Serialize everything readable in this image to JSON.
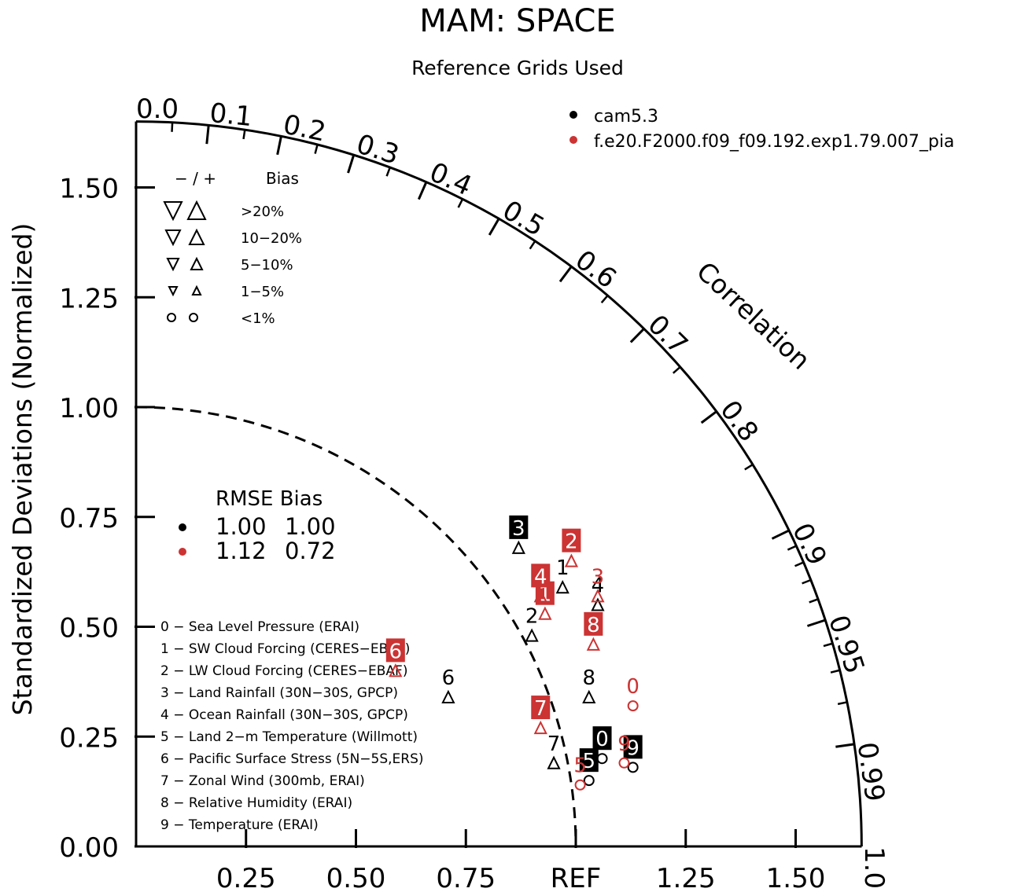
{
  "title": "MAM: SPACE",
  "subtitle": "Reference Grids Used",
  "chart_data": {
    "type": "scatter",
    "diagram": "taylor",
    "title": "MAM: SPACE",
    "subtitle": "Reference Grids Used",
    "ylabel": "Standardized Deviations (Normalized)",
    "arc_label": "Correlation",
    "ref_label": "REF",
    "y_ticks": [
      "0.00",
      "0.25",
      "0.50",
      "0.75",
      "1.00",
      "1.25",
      "1.50"
    ],
    "x_ticks": [
      "0.25",
      "0.50",
      "0.75",
      "REF",
      "1.25",
      "1.50"
    ],
    "corr_ticks": [
      "0.0",
      "0.1",
      "0.2",
      "0.3",
      "0.4",
      "0.5",
      "0.6",
      "0.7",
      "0.8",
      "0.9",
      "0.95",
      "0.99",
      "1.0"
    ],
    "legend": [
      {
        "name": "cam5.3",
        "color": "#000000"
      },
      {
        "name": "f.e20.F2000.f09_f09.192.exp1.79.007_pia",
        "color": "#cc3333"
      }
    ],
    "bias_legend": {
      "header_signs": "− / +",
      "header_bias": "Bias",
      "rows": [
        ">20%",
        "10−20%",
        "5−10%",
        "1−5%",
        "<1%"
      ]
    },
    "rmse_table": {
      "header": "RMSE Bias",
      "rows": [
        {
          "rmse": "1.00",
          "bias": "1.00",
          "color": "#000000"
        },
        {
          "rmse": "1.12",
          "bias": "0.72",
          "color": "#cc3333"
        }
      ]
    },
    "variables": [
      "0 − Sea Level Pressure (ERAI)",
      "1 − SW Cloud Forcing (CERES−EBAF)",
      "2 − LW Cloud Forcing (CERES−EBAF)",
      "3 − Land Rainfall (30N−30S, GPCP)",
      "4 − Ocean Rainfall (30N−30S, GPCP)",
      "5 − Land 2−m Temperature (Willmott)",
      "6 − Pacific Surface Stress (5N−5S,ERS)",
      "7 − Zonal Wind (300mb, ERAI)",
      "8 − Relative Humidity (ERAI)",
      "9 − Temperature (ERAI)"
    ],
    "series": [
      {
        "name": "cam5.3",
        "color": "#000000",
        "points": [
          {
            "id": "0",
            "x": 1.06,
            "y": 0.2,
            "marker": "circle",
            "boxed": true
          },
          {
            "id": "1",
            "x": 0.97,
            "y": 0.59,
            "marker": "tri-up",
            "boxed": false
          },
          {
            "id": "2",
            "x": 0.9,
            "y": 0.48,
            "marker": "tri-up",
            "boxed": false
          },
          {
            "id": "3",
            "x": 0.87,
            "y": 0.68,
            "marker": "tri-up",
            "boxed": true
          },
          {
            "id": "4",
            "x": 1.05,
            "y": 0.55,
            "marker": "tri-up",
            "boxed": false
          },
          {
            "id": "5",
            "x": 1.03,
            "y": 0.15,
            "marker": "circle",
            "boxed": true
          },
          {
            "id": "6",
            "x": 0.71,
            "y": 0.34,
            "marker": "tri-up",
            "boxed": false
          },
          {
            "id": "7",
            "x": 0.95,
            "y": 0.19,
            "marker": "tri-up",
            "boxed": false
          },
          {
            "id": "8",
            "x": 1.03,
            "y": 0.34,
            "marker": "tri-up",
            "boxed": false
          },
          {
            "id": "9",
            "x": 1.13,
            "y": 0.18,
            "marker": "circle",
            "boxed": true
          }
        ]
      },
      {
        "name": "f.e20.F2000.f09_f09.192.exp1.79.007_pia",
        "color": "#cc3333",
        "points": [
          {
            "id": "0",
            "x": 1.13,
            "y": 0.32,
            "marker": "circle",
            "boxed": false
          },
          {
            "id": "1",
            "x": 0.93,
            "y": 0.53,
            "marker": "tri-up",
            "boxed": true
          },
          {
            "id": "2",
            "x": 0.99,
            "y": 0.65,
            "marker": "tri-up",
            "boxed": true
          },
          {
            "id": "3",
            "x": 1.05,
            "y": 0.57,
            "marker": "tri-up",
            "boxed": false
          },
          {
            "id": "4",
            "x": 0.92,
            "y": 0.57,
            "marker": "tri-up",
            "boxed": true
          },
          {
            "id": "5",
            "x": 1.01,
            "y": 0.14,
            "marker": "circle",
            "boxed": false
          },
          {
            "id": "6",
            "x": 0.59,
            "y": 0.4,
            "marker": "tri-up",
            "boxed": true
          },
          {
            "id": "7",
            "x": 0.92,
            "y": 0.27,
            "marker": "tri-up",
            "boxed": true
          },
          {
            "id": "8",
            "x": 1.04,
            "y": 0.46,
            "marker": "tri-up",
            "boxed": true
          },
          {
            "id": "9",
            "x": 1.11,
            "y": 0.19,
            "marker": "circle",
            "boxed": false
          }
        ]
      }
    ],
    "ref_arc": 1.0,
    "max_sd": 1.65
  }
}
